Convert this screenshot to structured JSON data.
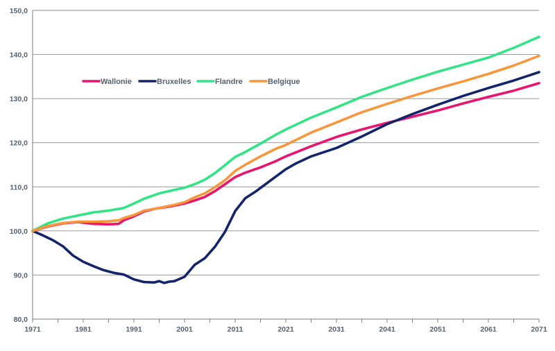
{
  "chart_data": {
    "type": "line",
    "title": "",
    "xlabel": "",
    "ylabel": "",
    "xlim": [
      1971,
      2071
    ],
    "ylim": [
      80,
      150
    ],
    "grid": true,
    "legend_position": "top-left",
    "x_ticks": [
      "1971",
      "1981",
      "1991",
      "2001",
      "2011",
      "2021",
      "2031",
      "2041",
      "2051",
      "2061",
      "2071"
    ],
    "y_ticks": [
      "80,0",
      "90,0",
      "100,0",
      "110,0",
      "120,0",
      "130,0",
      "140,0",
      "150,0"
    ],
    "series": [
      {
        "name": "Wallonie",
        "color": "#e8156f",
        "x": [
          1971,
          1974,
          1977,
          1980,
          1983,
          1986,
          1988,
          1989,
          1991,
          1993,
          1995,
          1998,
          2001,
          2003,
          2005,
          2007,
          2009,
          2011,
          2013,
          2016,
          2019,
          2021,
          2026,
          2031,
          2036,
          2041,
          2046,
          2051,
          2056,
          2061,
          2066,
          2071
        ],
        "values": [
          100.0,
          101.0,
          101.7,
          102.0,
          101.6,
          101.5,
          101.6,
          102.4,
          103.3,
          104.4,
          105.0,
          105.5,
          106.2,
          106.9,
          107.7,
          109.0,
          110.6,
          112.2,
          113.2,
          114.4,
          115.8,
          116.9,
          119.2,
          121.3,
          123.0,
          124.5,
          125.9,
          127.3,
          128.9,
          130.4,
          131.8,
          133.5
        ]
      },
      {
        "name": "Bruxelles",
        "color": "#14246b",
        "x": [
          1971,
          1973,
          1975,
          1977,
          1979,
          1981,
          1983,
          1985,
          1987,
          1989,
          1991,
          1993,
          1995,
          1996,
          1997,
          1998,
          1999,
          2001,
          2003,
          2005,
          2007,
          2009,
          2011,
          2013,
          2015,
          2017,
          2019,
          2021,
          2023,
          2026,
          2031,
          2036,
          2041,
          2046,
          2051,
          2056,
          2061,
          2066,
          2071
        ],
        "values": [
          100.0,
          99.0,
          97.9,
          96.5,
          94.4,
          93.0,
          92.0,
          91.1,
          90.5,
          90.1,
          89.0,
          88.4,
          88.3,
          88.6,
          88.2,
          88.5,
          88.6,
          89.6,
          92.3,
          93.8,
          96.4,
          99.8,
          104.5,
          107.4,
          108.9,
          110.6,
          112.3,
          114.0,
          115.3,
          116.9,
          118.8,
          121.4,
          124.2,
          126.5,
          128.6,
          130.6,
          132.4,
          134.1,
          136.0
        ]
      },
      {
        "name": "Flandre",
        "color": "#33e487",
        "x": [
          1971,
          1974,
          1977,
          1980,
          1983,
          1986,
          1989,
          1991,
          1993,
          1996,
          1999,
          2001,
          2003,
          2005,
          2007,
          2009,
          2011,
          2013,
          2016,
          2019,
          2021,
          2026,
          2031,
          2036,
          2041,
          2046,
          2051,
          2056,
          2061,
          2066,
          2071
        ],
        "values": [
          100.0,
          101.7,
          102.8,
          103.5,
          104.2,
          104.6,
          105.2,
          106.2,
          107.3,
          108.5,
          109.3,
          109.8,
          110.6,
          111.6,
          113.1,
          114.9,
          116.8,
          117.9,
          119.8,
          121.8,
          123.0,
          125.7,
          128.0,
          130.4,
          132.4,
          134.3,
          136.1,
          137.7,
          139.3,
          141.5,
          144.0
        ]
      },
      {
        "name": "Belgique",
        "color": "#f7963b",
        "x": [
          1971,
          1974,
          1977,
          1980,
          1983,
          1986,
          1988,
          1989,
          1991,
          1993,
          1996,
          1999,
          2001,
          2003,
          2005,
          2007,
          2009,
          2011,
          2013,
          2016,
          2019,
          2021,
          2026,
          2031,
          2036,
          2041,
          2046,
          2051,
          2056,
          2061,
          2066,
          2071
        ],
        "values": [
          100.0,
          101.1,
          101.8,
          102.1,
          102.1,
          102.2,
          102.4,
          102.9,
          103.6,
          104.6,
          105.2,
          105.9,
          106.5,
          107.6,
          108.5,
          109.9,
          111.5,
          113.6,
          115.0,
          116.9,
          118.6,
          119.5,
          122.3,
          124.6,
          126.9,
          128.8,
          130.6,
          132.3,
          133.9,
          135.6,
          137.5,
          139.7
        ]
      }
    ]
  }
}
